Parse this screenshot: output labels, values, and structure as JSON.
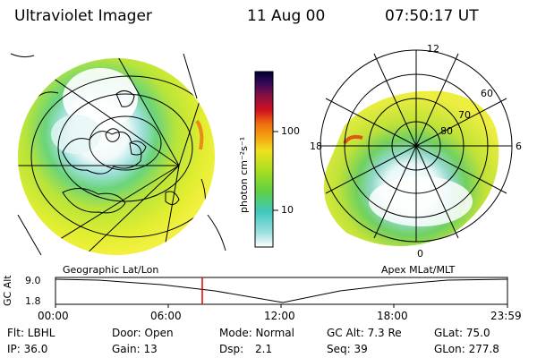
{
  "header": {
    "instrument": "Ultraviolet Imager",
    "date": "11 Aug 00",
    "time": "07:50:17 UT"
  },
  "colorbar": {
    "unit_label": "photon cm⁻²s⁻¹",
    "ticks": [
      "100",
      "10"
    ],
    "colors": [
      "#000033",
      "#3a0a5a",
      "#8a1040",
      "#d01020",
      "#f07010",
      "#f5a010",
      "#f0e020",
      "#b0e020",
      "#60d040",
      "#40c8c0",
      "#a0e0e0",
      "#ffffff"
    ]
  },
  "left_map": {
    "label": "Geographic Lat/Lon"
  },
  "right_map": {
    "label": "Apex MLat/MLT",
    "mlt_labels": {
      "top": "12",
      "left": "18",
      "right": "6",
      "bottom": "0"
    },
    "lat_labels": [
      "60",
      "70",
      "80"
    ]
  },
  "altitude_plot": {
    "ylabel": "GC Alt",
    "yticks": [
      "9.0",
      "1.8"
    ],
    "xticks": [
      "00:00",
      "06:00",
      "12:00",
      "18:00",
      "23:59"
    ],
    "marker_time": "07:50:17"
  },
  "info": {
    "flt": "Flt: LBHL",
    "ip": "IP: 36.0",
    "door": "Door: Open",
    "gain": "Gain: 13",
    "mode": "Mode: Normal",
    "dsp_label": "Dsp:",
    "dsp_value": "2.1",
    "gc_alt": "GC Alt: 7.3 Re",
    "seq": "Seq: 39",
    "glat": "GLat: 75.0",
    "glon": "GLon: 277.8"
  }
}
